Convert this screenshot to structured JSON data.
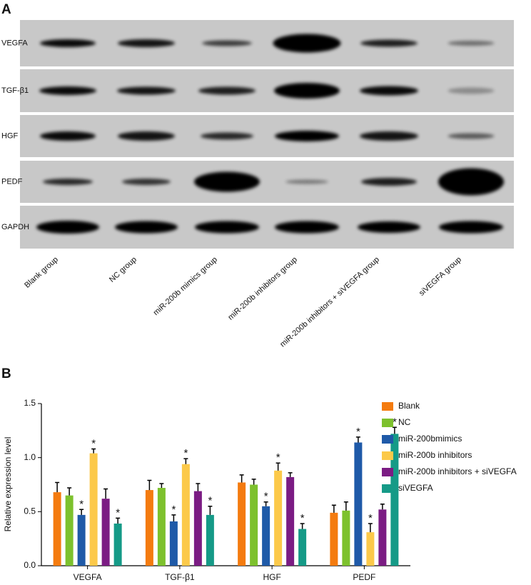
{
  "panel_a": {
    "label": "A",
    "rows": [
      "VEGFA",
      "TGF-β1",
      "HGF",
      "PEDF",
      "GAPDH"
    ],
    "lanes": [
      "Blank group",
      "NC group",
      "miR-200b mimics group",
      "miR-200b inhibitors group",
      "miR-200b inhibitors + siVEGFA  group",
      "siVEGFA  group"
    ]
  },
  "chart_data": {
    "type": "bar",
    "panel_label": "B",
    "y_label": "Relative expression level",
    "categories": [
      "VEGFA",
      "TGF-β1",
      "HGF",
      "PEDF"
    ],
    "ylim": [
      0,
      1.5
    ],
    "yticks": [
      {
        "value": 0,
        "label": "0.0"
      },
      0.5,
      {
        "value": 1,
        "label": "1.0"
      },
      1.5
    ],
    "legend": "right",
    "series": [
      {
        "name": "Blank",
        "color": "#f47b0f",
        "values": [
          0.68,
          0.7,
          0.77,
          0.49
        ],
        "errors": [
          0.09,
          0.09,
          0.07,
          0.07
        ]
      },
      {
        "name": "NC",
        "color": "#7dc12d",
        "values": [
          0.65,
          0.72,
          0.75,
          0.51
        ],
        "errors": [
          0.07,
          0.04,
          0.05,
          0.08
        ]
      },
      {
        "name": "miR-200bmimics",
        "color": "#1f5aa8",
        "values": [
          0.47,
          0.41,
          0.55,
          1.14
        ],
        "errors": [
          0.05,
          0.06,
          0.04,
          0.05
        ],
        "annotations": [
          "*",
          "*",
          "*",
          "*"
        ]
      },
      {
        "name": "miR-200b inhibitors",
        "color": "#fcc94a",
        "values": [
          1.04,
          0.94,
          0.88,
          0.31
        ],
        "errors": [
          0.04,
          0.05,
          0.07,
          0.08
        ],
        "annotations": [
          "*",
          "*",
          "*",
          "*"
        ]
      },
      {
        "name": "miR-200b inhibitors + siVEGFA",
        "color": "#7b1c83",
        "values": [
          0.62,
          0.69,
          0.82,
          0.52
        ],
        "errors": [
          0.09,
          0.07,
          0.04,
          0.05
        ]
      },
      {
        "name": "siVEGFA",
        "color": "#159a87",
        "values": [
          0.39,
          0.47,
          0.34,
          1.22
        ],
        "errors": [
          0.05,
          0.08,
          0.05,
          0.06
        ],
        "annotations": [
          "*",
          "*",
          "*",
          "*"
        ]
      }
    ]
  }
}
